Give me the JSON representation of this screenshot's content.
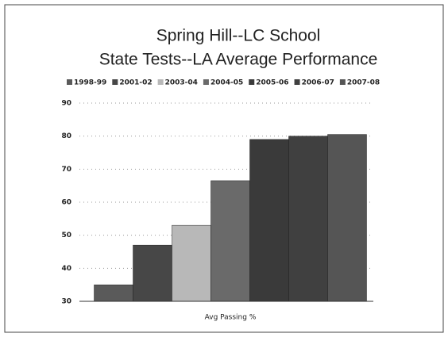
{
  "chart_data": {
    "type": "bar",
    "title": "Spring Hill--LC School",
    "subtitle": "State Tests--LA Average Performance",
    "categories": [
      "Avg Passing %"
    ],
    "series": [
      {
        "name": "1998-99",
        "color": "#5a5a5a",
        "values": [
          35
        ]
      },
      {
        "name": "2001-02",
        "color": "#474747",
        "values": [
          47
        ]
      },
      {
        "name": "2003-04",
        "color": "#b8b8b8",
        "values": [
          53
        ]
      },
      {
        "name": "2004-05",
        "color": "#6a6a6a",
        "values": [
          66.5
        ]
      },
      {
        "name": "2005-06",
        "color": "#3a3a3a",
        "values": [
          79
        ]
      },
      {
        "name": "2006-07",
        "color": "#404040",
        "values": [
          80
        ]
      },
      {
        "name": "2007-08",
        "color": "#555555",
        "values": [
          80.5
        ]
      }
    ],
    "ylim": [
      30,
      90
    ],
    "yticks": [
      30,
      40,
      50,
      60,
      70,
      80,
      90
    ],
    "grid": true
  }
}
